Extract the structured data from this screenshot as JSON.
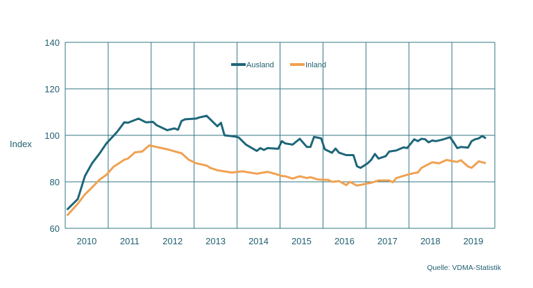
{
  "chart_data": {
    "type": "line",
    "title": "",
    "xlabel": "",
    "ylabel": "Index",
    "ylim": [
      60,
      140
    ],
    "yticks": [
      "60",
      "80",
      "100",
      "120",
      "140"
    ],
    "xticks": [
      "2010",
      "2011",
      "2012",
      "2013",
      "2014",
      "2015",
      "2016",
      "2017",
      "2018",
      "2019"
    ],
    "xlim": [
      "2010-01",
      "2019-12"
    ],
    "grid": true,
    "legend_position": "top-center",
    "source": "Quelle: VDMA-Statistik",
    "colors": {
      "axis": "#2f7482",
      "text": "#1f5f70"
    },
    "series": [
      {
        "name": "Ausland",
        "color": "#1d6679",
        "points": [
          [
            "2010-01",
            68
          ],
          [
            "2010-04",
            72.6
          ],
          [
            "2010-06",
            82.5
          ],
          [
            "2010-08",
            88
          ],
          [
            "2010-10",
            92
          ],
          [
            "2010-12",
            96.5
          ],
          [
            "2011-03",
            101.5
          ],
          [
            "2011-05",
            105.6
          ],
          [
            "2011-06",
            105.4
          ],
          [
            "2011-09",
            107.2
          ],
          [
            "2011-11",
            105.6
          ],
          [
            "2012-01",
            105.8
          ],
          [
            "2012-02",
            104.4
          ],
          [
            "2012-05",
            102.2
          ],
          [
            "2012-07",
            103
          ],
          [
            "2012-08",
            102.4
          ],
          [
            "2012-09",
            106.2
          ],
          [
            "2012-10",
            106.9
          ],
          [
            "2013-01",
            107.2
          ],
          [
            "2013-02",
            107.7
          ],
          [
            "2013-04",
            108.4
          ],
          [
            "2013-07",
            103.9
          ],
          [
            "2013-08",
            105.4
          ],
          [
            "2013-09",
            100
          ],
          [
            "2013-12",
            99.5
          ],
          [
            "2014-01",
            99
          ],
          [
            "2014-03",
            96
          ],
          [
            "2014-06",
            93.3
          ],
          [
            "2014-07",
            94.5
          ],
          [
            "2014-08",
            93.7
          ],
          [
            "2014-09",
            94.5
          ],
          [
            "2014-12",
            94.2
          ],
          [
            "2015-01",
            97.5
          ],
          [
            "2015-02",
            96.5
          ],
          [
            "2015-04",
            96
          ],
          [
            "2015-06",
            98.5
          ],
          [
            "2015-08",
            95
          ],
          [
            "2015-09",
            95
          ],
          [
            "2015-10",
            99.3
          ],
          [
            "2015-12",
            98.7
          ],
          [
            "2016-01",
            94
          ],
          [
            "2016-03",
            92.5
          ],
          [
            "2016-04",
            94.3
          ],
          [
            "2016-05",
            92.5
          ],
          [
            "2016-07",
            91.5
          ],
          [
            "2016-09",
            91.5
          ],
          [
            "2016-10",
            86.7
          ],
          [
            "2016-11",
            86
          ],
          [
            "2017-01",
            88
          ],
          [
            "2017-02",
            89.5
          ],
          [
            "2017-03",
            92
          ],
          [
            "2017-04",
            90
          ],
          [
            "2017-06",
            91
          ],
          [
            "2017-07",
            93
          ],
          [
            "2017-09",
            93.5
          ],
          [
            "2017-11",
            94.8
          ],
          [
            "2017-12",
            94.5
          ],
          [
            "2018-02",
            98.3
          ],
          [
            "2018-03",
            97.5
          ],
          [
            "2018-04",
            98.5
          ],
          [
            "2018-05",
            98.3
          ],
          [
            "2018-06",
            97
          ],
          [
            "2018-07",
            97.8
          ],
          [
            "2018-08",
            97.5
          ],
          [
            "2018-10",
            98.2
          ],
          [
            "2018-12",
            99.2
          ],
          [
            "2019-01",
            97
          ],
          [
            "2019-02",
            94.5
          ],
          [
            "2019-03",
            95
          ],
          [
            "2019-05",
            94.7
          ],
          [
            "2019-06",
            97.5
          ],
          [
            "2019-07",
            98.3
          ],
          [
            "2019-08",
            98.7
          ],
          [
            "2019-09",
            99.7
          ],
          [
            "2019-10",
            98.7
          ]
        ]
      },
      {
        "name": "Inland",
        "color": "#f0a151",
        "points": [
          [
            "2010-01",
            65.5
          ],
          [
            "2010-04",
            70.6
          ],
          [
            "2010-06",
            74.6
          ],
          [
            "2010-08",
            77.6
          ],
          [
            "2010-10",
            80.8
          ],
          [
            "2010-12",
            83
          ],
          [
            "2011-02",
            86.5
          ],
          [
            "2011-05",
            89.5
          ],
          [
            "2011-06",
            90
          ],
          [
            "2011-08",
            92.7
          ],
          [
            "2011-10",
            93
          ],
          [
            "2011-12",
            95.7
          ],
          [
            "2012-02",
            95
          ],
          [
            "2012-05",
            94
          ],
          [
            "2012-08",
            92.7
          ],
          [
            "2012-09",
            92.3
          ],
          [
            "2012-11",
            89.5
          ],
          [
            "2013-01",
            88
          ],
          [
            "2013-04",
            87
          ],
          [
            "2013-05",
            86
          ],
          [
            "2013-07",
            85
          ],
          [
            "2013-11",
            84
          ],
          [
            "2014-02",
            84.5
          ],
          [
            "2014-06",
            83.5
          ],
          [
            "2014-09",
            84.3
          ],
          [
            "2014-11",
            83.5
          ],
          [
            "2015-01",
            82.5
          ],
          [
            "2015-02",
            82.4
          ],
          [
            "2015-04",
            81.4
          ],
          [
            "2015-06",
            82.4
          ],
          [
            "2015-08",
            81.6
          ],
          [
            "2015-09",
            82
          ],
          [
            "2015-11",
            81
          ],
          [
            "2016-02",
            80.8
          ],
          [
            "2016-03",
            80
          ],
          [
            "2016-05",
            80.3
          ],
          [
            "2016-07",
            78.6
          ],
          [
            "2016-08",
            80
          ],
          [
            "2016-10",
            78.4
          ],
          [
            "2016-12",
            79
          ],
          [
            "2017-02",
            79.6
          ],
          [
            "2017-04",
            80.6
          ],
          [
            "2017-07",
            80.6
          ],
          [
            "2017-08",
            79.8
          ],
          [
            "2017-09",
            81.6
          ],
          [
            "2017-12",
            83
          ],
          [
            "2018-02",
            83.8
          ],
          [
            "2018-03",
            84
          ],
          [
            "2018-04",
            86
          ],
          [
            "2018-07",
            88.4
          ],
          [
            "2018-09",
            88
          ],
          [
            "2018-11",
            89.4
          ],
          [
            "2019-01",
            88.8
          ],
          [
            "2019-02",
            88.6
          ],
          [
            "2019-03",
            89.3
          ],
          [
            "2019-05",
            86.6
          ],
          [
            "2019-06",
            86
          ],
          [
            "2019-08",
            88.8
          ],
          [
            "2019-10",
            88
          ]
        ]
      }
    ]
  }
}
